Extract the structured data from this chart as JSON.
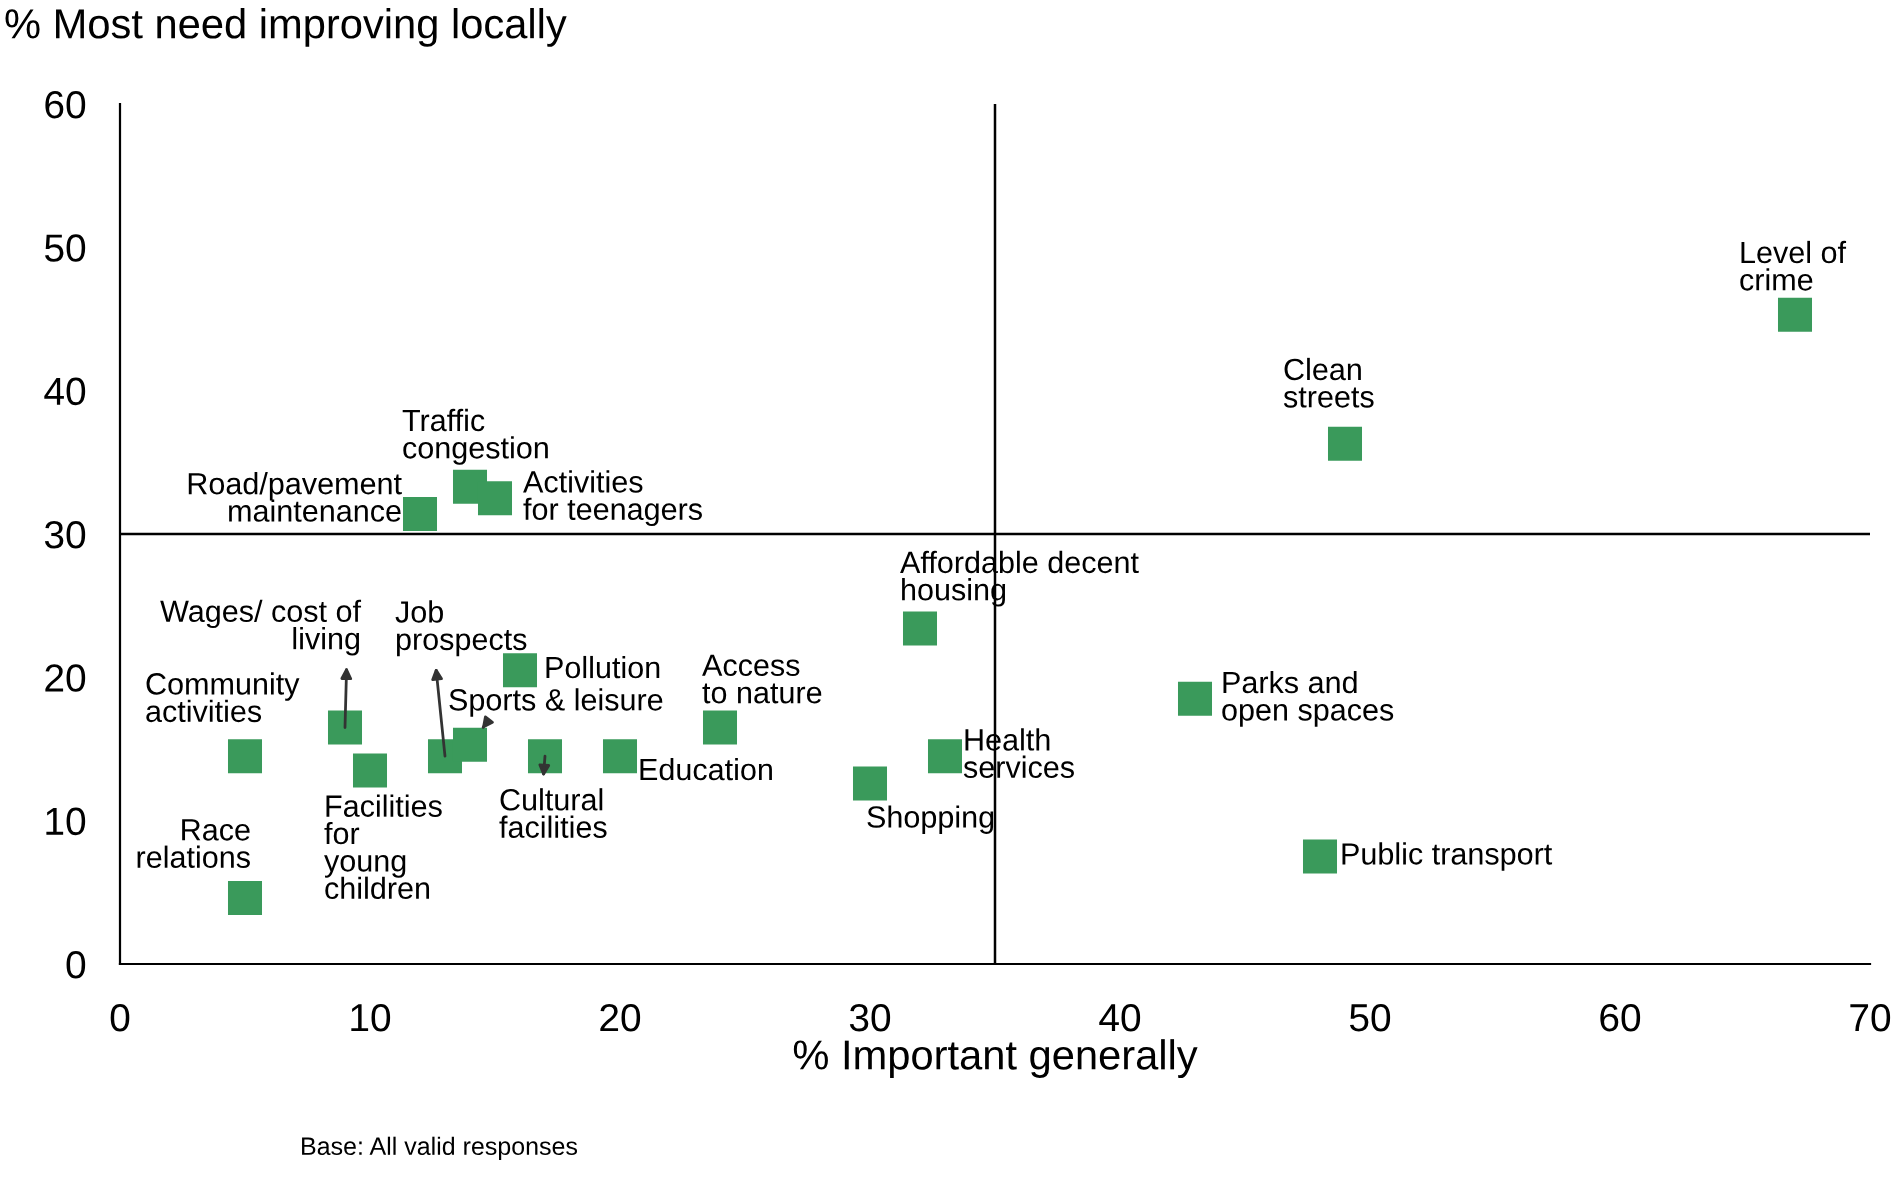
{
  "chart_data": {
    "type": "scatter",
    "ylabel": "% Most need improving locally",
    "xlabel": "% Important generally",
    "x": [
      5,
      5,
      9,
      10,
      13,
      14,
      16,
      17,
      20,
      24,
      30,
      32,
      33,
      12,
      14,
      15,
      43,
      48,
      49,
      67
    ],
    "series": [
      {
        "color": "#3a9a5b",
        "values": [
          4.6,
          14.5,
          16.5,
          13.5,
          14.5,
          15.3,
          20.5,
          14.5,
          14.5,
          16.5,
          12.6,
          23.4,
          14.5,
          31.4,
          33.3,
          32.5,
          18.5,
          7.5,
          36.3,
          45.3
        ]
      }
    ],
    "marker": "square",
    "xlim": [
      0,
      70
    ],
    "ylim": [
      0,
      60
    ],
    "xticks": [
      0,
      10,
      20,
      30,
      40,
      50,
      60,
      70
    ],
    "yticks": [
      0,
      10,
      20,
      30,
      40,
      50,
      60
    ],
    "ref_lines": [
      {
        "axis": "x",
        "value": 35,
        "color": "#000000"
      },
      {
        "axis": "y",
        "value": 30,
        "color": "#000000"
      }
    ],
    "grid": false,
    "annotations": [
      {
        "text": "Race\nrelations",
        "x": 5,
        "y": 4.6
      },
      {
        "text": "Community\nactivities",
        "x": 5,
        "y": 14.5
      },
      {
        "text": "Wages/ cost of\nliving",
        "x": 9,
        "y": 16.5
      },
      {
        "text": "Facilities\nfor\nyoung\nchildren",
        "x": 10,
        "y": 13.5
      },
      {
        "text": "Job\nprospects",
        "x": 13,
        "y": 14.5
      },
      {
        "text": "Sports & leisure",
        "x": 14,
        "y": 15.3
      },
      {
        "text": "Pollution",
        "x": 16,
        "y": 20.5
      },
      {
        "text": "Cultural\nfacilities",
        "x": 17,
        "y": 14.5
      },
      {
        "text": "Education",
        "x": 20,
        "y": 14.5
      },
      {
        "text": "Access\nto nature",
        "x": 24,
        "y": 16.5
      },
      {
        "text": "Shopping",
        "x": 30,
        "y": 12.6
      },
      {
        "text": "Affordable decent\nhousing",
        "x": 32,
        "y": 23.4
      },
      {
        "text": "Health\nservices",
        "x": 33,
        "y": 14.5
      },
      {
        "text": "Road/pavement\nmaintenance",
        "x": 12,
        "y": 31.4
      },
      {
        "text": "Traffic\ncongestion",
        "x": 14,
        "y": 33.3
      },
      {
        "text": "Activities\nfor teenagers",
        "x": 15,
        "y": 32.5
      },
      {
        "text": "Parks and\nopen spaces",
        "x": 43,
        "y": 18.5
      },
      {
        "text": "Public transport",
        "x": 48,
        "y": 7.5
      },
      {
        "text": "Clean\nstreets",
        "x": 49,
        "y": 36.3
      },
      {
        "text": "Level of\ncrime",
        "x": 67,
        "y": 45.3
      },
      "Base: All valid responses"
    ]
  }
}
